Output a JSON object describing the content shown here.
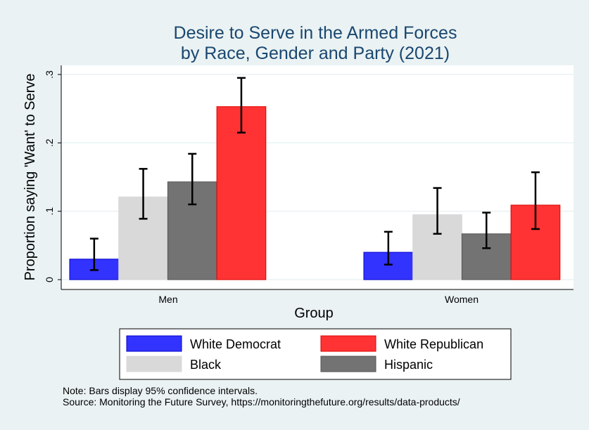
{
  "chart_data": {
    "type": "bar",
    "title": [
      "Desire to Serve in the Armed Forces",
      "by Race, Gender and Party (2021)"
    ],
    "xlabel": "Group",
    "ylabel": "Proportion saying 'Want' to Serve",
    "ylim": [
      0,
      0.3
    ],
    "yticks": [
      0,
      0.1,
      0.2,
      0.3
    ],
    "ytick_labels": [
      "0",
      ".1",
      ".2",
      ".3"
    ],
    "grid": true,
    "categories": [
      "Men",
      "Women"
    ],
    "series": [
      {
        "name": "White Democrat",
        "color": "#3333ff",
        "values": [
          0.03,
          0.04
        ],
        "ci_low": [
          0.014,
          0.022
        ],
        "ci_high": [
          0.06,
          0.07
        ]
      },
      {
        "name": "Black",
        "color": "#d9d9d9",
        "values": [
          0.121,
          0.095
        ],
        "ci_low": [
          0.089,
          0.067
        ],
        "ci_high": [
          0.162,
          0.134
        ]
      },
      {
        "name": "Hispanic",
        "color": "#737373",
        "values": [
          0.143,
          0.067
        ],
        "ci_low": [
          0.11,
          0.046
        ],
        "ci_high": [
          0.184,
          0.098
        ]
      },
      {
        "name": "White Republican",
        "color": "#ff3333",
        "values": [
          0.253,
          0.109
        ],
        "ci_low": [
          0.215,
          0.074
        ],
        "ci_high": [
          0.295,
          0.157
        ]
      }
    ],
    "legend_position": "bottom",
    "notes": [
      "Note: Bars display 95% confidence intervals.",
      "Source: Monitoring the Future Survey, https://monitoringthefuture.org/results/data-products/"
    ]
  }
}
